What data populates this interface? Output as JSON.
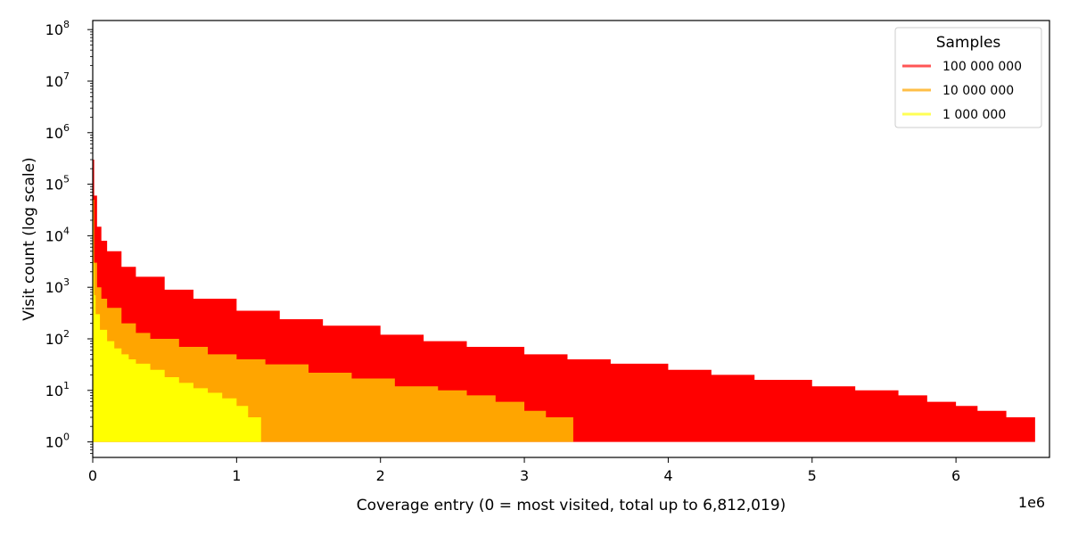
{
  "chart_data": {
    "type": "area",
    "xlabel": "Coverage entry (0 = most visited, total up to 6,812,019)",
    "ylabel": "Visit count (log scale)",
    "x_offset_label": "1e6",
    "y_scale": "log",
    "xlim": [
      0,
      6650000
    ],
    "ylim": [
      0.5,
      150000000
    ],
    "x_ticks": [
      0,
      1,
      2,
      3,
      4,
      5,
      6
    ],
    "x_tick_labels": [
      "0",
      "1",
      "2",
      "3",
      "4",
      "5",
      "6"
    ],
    "y_tick_exponents": [
      0,
      1,
      2,
      3,
      4,
      5,
      6,
      7,
      8
    ],
    "legend": {
      "title": "Samples",
      "position": "top-right"
    },
    "series": [
      {
        "name": "100 000 000",
        "color": "#ff0000",
        "legend_color": "#ff5555",
        "x": [
          0,
          3000,
          10000,
          30000,
          60000,
          100000,
          200000,
          300000,
          500000,
          700000,
          1000000,
          1300000,
          1600000,
          2000000,
          2300000,
          2600000,
          3000000,
          3300000,
          3600000,
          4000000,
          4300000,
          4600000,
          5000000,
          5300000,
          5600000,
          5800000,
          6000000,
          6150000,
          6350000,
          6550000
        ],
        "values": [
          100000000,
          300000,
          60000,
          15000,
          8000,
          5000,
          2500,
          1600,
          900,
          600,
          350,
          240,
          180,
          120,
          90,
          70,
          50,
          40,
          33,
          25,
          20,
          16,
          12,
          10,
          8,
          6,
          5,
          4,
          3,
          2
        ]
      },
      {
        "name": "10 000 000",
        "color": "#ffa500",
        "legend_color": "#ffbf47",
        "x": [
          0,
          3000,
          10000,
          30000,
          60000,
          100000,
          200000,
          300000,
          400000,
          600000,
          800000,
          1000000,
          1200000,
          1500000,
          1800000,
          2100000,
          2400000,
          2600000,
          2800000,
          3000000,
          3150000,
          3340000
        ],
        "values": [
          10000000,
          50000,
          3000,
          1000,
          600,
          400,
          200,
          130,
          100,
          70,
          50,
          40,
          32,
          22,
          17,
          12,
          10,
          8,
          6,
          4,
          3,
          2
        ]
      },
      {
        "name": "1 000 000",
        "color": "#ffff00",
        "legend_color": "#ffff55",
        "x": [
          0,
          2000,
          5000,
          10000,
          20000,
          50000,
          100000,
          150000,
          200000,
          250000,
          300000,
          400000,
          500000,
          600000,
          700000,
          800000,
          900000,
          1000000,
          1080000,
          1170000
        ],
        "values": [
          1000000,
          20000,
          3000,
          700,
          300,
          150,
          90,
          65,
          50,
          40,
          33,
          25,
          18,
          14,
          11,
          9,
          7,
          5,
          3,
          2
        ]
      }
    ]
  }
}
